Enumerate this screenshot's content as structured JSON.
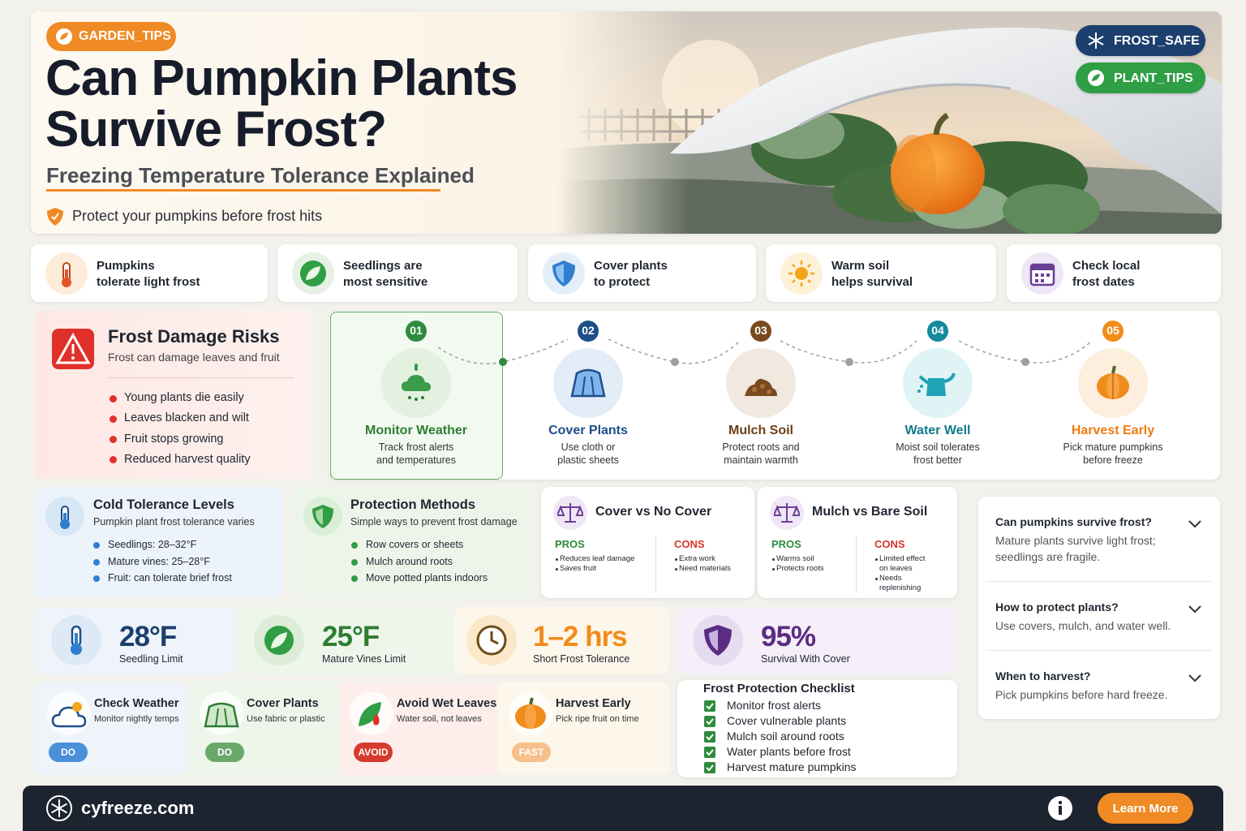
{
  "header": {
    "tag": "GARDEN_TIPS",
    "title_lines": [
      "Can Pumpkin Plants",
      "Survive Frost?"
    ],
    "subtitle": "Freezing Temperature Tolerance Explained",
    "note": "Protect your pumpkins before frost hits",
    "badges": [
      "FROST_SAFE",
      "PLANT_TIPS"
    ]
  },
  "highlights": [
    {
      "lines": [
        "Pumpkins",
        "tolerate light frost"
      ]
    },
    {
      "lines": [
        "Seedlings are",
        "most sensitive"
      ]
    },
    {
      "lines": [
        "Cover plants",
        "to protect"
      ]
    },
    {
      "lines": [
        "Warm soil",
        "helps survival"
      ]
    },
    {
      "lines": [
        "Check local",
        "frost dates"
      ]
    }
  ],
  "risks": {
    "title": "Frost Damage Risks",
    "subtitle": "Frost can damage leaves and fruit",
    "items": [
      "Young plants die easily",
      "Leaves blacken and wilt",
      "Fruit stops growing",
      "Reduced harvest quality"
    ]
  },
  "steps": [
    {
      "number": "01",
      "title": "Monitor Weather",
      "lines": [
        "Track frost alerts",
        "and temperatures"
      ]
    },
    {
      "number": "02",
      "title": "Cover Plants",
      "lines": [
        "Use cloth or",
        "plastic sheets"
      ]
    },
    {
      "number": "03",
      "title": "Mulch Soil",
      "lines": [
        "Protect roots and",
        "maintain warmth"
      ]
    },
    {
      "number": "04",
      "title": "Water Well",
      "lines": [
        "Moist soil tolerates",
        "frost better"
      ]
    },
    {
      "number": "05",
      "title": "Harvest Early",
      "lines": [
        "Pick mature pumpkins",
        "before freeze"
      ]
    }
  ],
  "tolerance": {
    "title": "Cold Tolerance Levels",
    "subtitle": "Pumpkin plant frost tolerance varies",
    "items": [
      "Seedlings: 28–32°F",
      "Mature vines: 25–28°F",
      "Fruit: can tolerate brief frost"
    ]
  },
  "protection": {
    "title": "Protection Methods",
    "subtitle": "Simple ways to prevent frost damage",
    "items": [
      "Row covers or sheets",
      "Mulch around roots",
      "Move potted plants indoors"
    ]
  },
  "comparisons": [
    {
      "title": "Cover vs No Cover",
      "pros_label": "PROS",
      "pros": [
        "Reduces leaf damage",
        "Saves fruit"
      ],
      "cons_label": "CONS",
      "cons": [
        "Extra work",
        "Need materials"
      ]
    },
    {
      "title": "Mulch vs Bare Soil",
      "pros_label": "PROS",
      "pros": [
        "Warms soil",
        "Protects roots"
      ],
      "cons_label": "CONS",
      "cons": [
        "Limited effect on leaves",
        "Needs replenishing"
      ]
    }
  ],
  "stats": [
    {
      "value": "28°F",
      "label": "Seedling Limit"
    },
    {
      "value": "25°F",
      "label": "Mature Vines Limit"
    },
    {
      "value": "1–2 hrs",
      "label": "Short Frost Tolerance"
    },
    {
      "value": "95%",
      "label": "Survival With Cover"
    }
  ],
  "actions": [
    {
      "title": "Check Weather",
      "text": "Monitor nightly temps",
      "tag": "DO"
    },
    {
      "title": "Cover Plants",
      "text": "Use fabric or plastic",
      "tag": "DO"
    },
    {
      "title": "Avoid Wet Leaves",
      "text": "Water soil, not leaves",
      "tag": "AVOID"
    },
    {
      "title": "Harvest Early",
      "text": "Pick ripe fruit on time",
      "tag": "FAST"
    }
  ],
  "checklist": {
    "title": "Frost Protection Checklist",
    "items": [
      "Monitor frost alerts",
      "Cover vulnerable plants",
      "Mulch soil around roots",
      "Water plants before frost",
      "Harvest mature pumpkins"
    ]
  },
  "faq": [
    {
      "question": "Can pumpkins survive frost?",
      "answer": "Mature plants survive light frost; seedlings are fragile."
    },
    {
      "question": "How to protect plants?",
      "answer": "Use covers, mulch, and water well."
    },
    {
      "question": "When to harvest?",
      "answer": "Pick pumpkins before hard freeze."
    }
  ],
  "footer": {
    "site": "cyfreeze.com",
    "button": "Learn More"
  }
}
